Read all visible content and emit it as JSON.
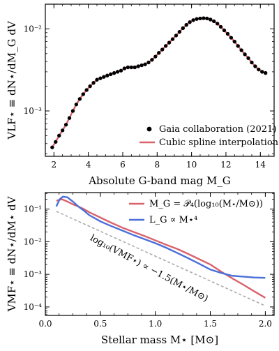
{
  "chart_data": [
    {
      "type": "line",
      "xlabel": "Absolute G-band mag M_G",
      "ylabel": "VLF⋆ ≡ dN⋆/dM_G dV",
      "xlim": [
        1.5,
        14.8
      ],
      "ylim": [
        0.00028,
        0.02
      ],
      "yscale": "log",
      "xticks": [
        2,
        4,
        6,
        8,
        10,
        12,
        14
      ],
      "xtick_labels": [
        "2",
        "4",
        "6",
        "8",
        "10",
        "12",
        "14"
      ],
      "yticks": [
        0.001,
        0.01
      ],
      "ytick_labels": [
        "10⁻³",
        "10⁻²"
      ],
      "legend_position": "lower-right",
      "series": [
        {
          "name": "Gaia collaboration (2021)",
          "kind": "scatter",
          "color": "#000000",
          "x": [
            1.9,
            2.1,
            2.3,
            2.5,
            2.7,
            2.9,
            3.1,
            3.3,
            3.5,
            3.7,
            3.9,
            4.1,
            4.3,
            4.5,
            4.7,
            4.9,
            5.1,
            5.3,
            5.5,
            5.7,
            5.9,
            6.1,
            6.3,
            6.5,
            6.7,
            6.9,
            7.1,
            7.3,
            7.5,
            7.7,
            7.9,
            8.1,
            8.3,
            8.5,
            8.7,
            8.9,
            9.1,
            9.3,
            9.5,
            9.7,
            9.9,
            10.1,
            10.3,
            10.5,
            10.7,
            10.9,
            11.1,
            11.3,
            11.5,
            11.7,
            11.9,
            12.1,
            12.3,
            12.5,
            12.7,
            12.9,
            13.1,
            13.3,
            13.5,
            13.7,
            13.9,
            14.1,
            14.3
          ],
          "y": [
            0.00036,
            0.00042,
            0.0005,
            0.00058,
            0.00068,
            0.00082,
            0.001,
            0.0012,
            0.0014,
            0.0016,
            0.0018,
            0.002,
            0.0022,
            0.0024,
            0.0025,
            0.0026,
            0.0027,
            0.0028,
            0.0029,
            0.003,
            0.0031,
            0.0033,
            0.0034,
            0.0034,
            0.0034,
            0.0035,
            0.0036,
            0.0037,
            0.0039,
            0.0042,
            0.0046,
            0.0051,
            0.0056,
            0.0062,
            0.0068,
            0.0075,
            0.0083,
            0.0092,
            0.0102,
            0.0112,
            0.0121,
            0.0128,
            0.0132,
            0.0134,
            0.0135,
            0.0134,
            0.013,
            0.0124,
            0.0116,
            0.0106,
            0.0096,
            0.0087,
            0.0078,
            0.007,
            0.0062,
            0.0055,
            0.0049,
            0.0044,
            0.0039,
            0.0035,
            0.0032,
            0.003,
            0.0029
          ]
        },
        {
          "name": "Cubic spline interpolation",
          "kind": "line",
          "color": "#d9626b",
          "x": [
            1.9,
            2.1,
            2.3,
            2.5,
            2.7,
            2.9,
            3.1,
            3.3,
            3.5,
            3.7,
            3.9,
            4.1,
            4.3,
            4.5,
            4.7,
            4.9,
            5.1,
            5.3,
            5.5,
            5.7,
            5.9,
            6.1,
            6.3,
            6.5,
            6.7,
            6.9,
            7.1,
            7.3,
            7.5,
            7.7,
            7.9,
            8.1,
            8.3,
            8.5,
            8.7,
            8.9,
            9.1,
            9.3,
            9.5,
            9.7,
            9.9,
            10.1,
            10.3,
            10.5,
            10.7,
            10.9,
            11.1,
            11.3,
            11.5,
            11.7,
            11.9,
            12.1,
            12.3,
            12.5,
            12.7,
            12.9,
            13.1,
            13.3,
            13.5,
            13.7,
            13.9,
            14.1,
            14.3
          ],
          "y": [
            0.00036,
            0.00042,
            0.0005,
            0.00058,
            0.00068,
            0.00082,
            0.001,
            0.0012,
            0.0014,
            0.0016,
            0.0018,
            0.002,
            0.0022,
            0.0024,
            0.0025,
            0.0026,
            0.0027,
            0.0028,
            0.0029,
            0.003,
            0.0031,
            0.0033,
            0.0034,
            0.0034,
            0.0034,
            0.0035,
            0.0036,
            0.0037,
            0.0039,
            0.0042,
            0.0046,
            0.0051,
            0.0056,
            0.0062,
            0.0068,
            0.0075,
            0.0083,
            0.0092,
            0.0102,
            0.0112,
            0.0121,
            0.0128,
            0.0132,
            0.0134,
            0.0135,
            0.0134,
            0.013,
            0.0124,
            0.0116,
            0.0106,
            0.0096,
            0.0087,
            0.0078,
            0.007,
            0.0062,
            0.0055,
            0.0049,
            0.0044,
            0.0039,
            0.0035,
            0.0032,
            0.003,
            0.0029
          ]
        }
      ]
    },
    {
      "type": "line",
      "xlabel": "Stellar mass M⋆ [M⊙]",
      "ylabel": "VMF⋆ ≡ dN⋆/dM⋆ dV",
      "xlim": [
        0.0,
        2.08
      ],
      "ylim": [
        5.5e-05,
        0.32
      ],
      "yscale": "log",
      "xticks": [
        0.0,
        0.5,
        1.0,
        1.5,
        2.0
      ],
      "xtick_labels": [
        "0.0",
        "0.5",
        "1.0",
        "1.5",
        "2.0"
      ],
      "yticks": [
        0.0001,
        0.001,
        0.01,
        0.1
      ],
      "ytick_labels": [
        "10⁻⁴",
        "10⁻³",
        "10⁻²",
        "10⁻¹"
      ],
      "legend_position": "top-right",
      "annotation": "log₁₀(VMF⋆) ∝ −1.5(M⋆/M⊙)",
      "series": [
        {
          "name": "M_G = 𝒫₄(log₁₀(M⋆/M⊙))",
          "color": "#d9626b",
          "x": [
            0.1,
            0.15,
            0.2,
            0.25,
            0.3,
            0.35,
            0.4,
            0.5,
            0.6,
            0.7,
            0.8,
            0.9,
            1.0,
            1.1,
            1.2,
            1.3,
            1.4,
            1.5,
            1.6,
            1.7,
            1.8,
            1.9,
            2.0
          ],
          "y": [
            0.18,
            0.2,
            0.17,
            0.14,
            0.12,
            0.1,
            0.08,
            0.055,
            0.038,
            0.027,
            0.02,
            0.015,
            0.011,
            0.008,
            0.006,
            0.0042,
            0.0029,
            0.002,
            0.0012,
            0.00075,
            0.00048,
            0.0003,
            0.00019
          ]
        },
        {
          "name": "L_G ∝ M⋆⁴",
          "color": "#4a6fd9",
          "x": [
            0.1,
            0.13,
            0.16,
            0.2,
            0.25,
            0.3,
            0.35,
            0.4,
            0.5,
            0.6,
            0.7,
            0.8,
            0.9,
            1.0,
            1.1,
            1.2,
            1.3,
            1.4,
            1.5,
            1.6,
            1.7,
            1.8,
            1.9,
            2.0
          ],
          "y": [
            0.12,
            0.2,
            0.24,
            0.23,
            0.17,
            0.12,
            0.09,
            0.065,
            0.042,
            0.03,
            0.022,
            0.016,
            0.012,
            0.009,
            0.0065,
            0.0045,
            0.0031,
            0.0021,
            0.0014,
            0.0011,
            0.0009,
            0.00085,
            0.0008,
            0.00078
          ]
        },
        {
          "name": "",
          "color": "#aaaaaa",
          "dashed": true,
          "x": [
            0.1,
            2.0
          ],
          "y": [
            0.085,
            0.000108
          ]
        }
      ]
    }
  ]
}
